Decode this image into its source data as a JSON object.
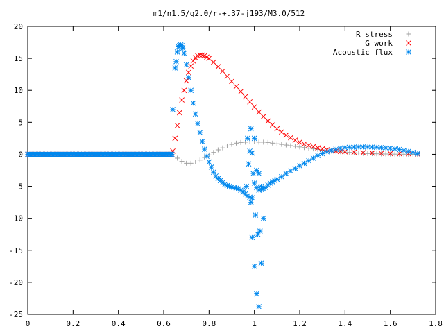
{
  "chart_data": {
    "type": "scatter",
    "title": "m1/n1.5/q2.0/r-+.37-j193/M3.0/512",
    "xlabel": "",
    "ylabel": "",
    "xlim": [
      0,
      1.8
    ],
    "ylim": [
      -25,
      20
    ],
    "x_ticks": [
      "0",
      "0.2",
      "0.4",
      "0.6",
      "0.8",
      "1",
      "1.2",
      "1.4",
      "1.6",
      "1.8"
    ],
    "y_ticks": [
      "20",
      "15",
      "10",
      "5",
      "0",
      "-5",
      "-10",
      "-15",
      "-20",
      "-25"
    ],
    "x_tick_values": [
      0,
      0.2,
      0.4,
      0.6,
      0.8,
      1.0,
      1.2,
      1.4,
      1.6,
      1.8
    ],
    "y_tick_values": [
      20,
      15,
      10,
      5,
      0,
      -5,
      -10,
      -15,
      -20,
      -25
    ],
    "grid": false,
    "legend_position": "top-right",
    "series": [
      {
        "name": "R stress",
        "marker": "plus",
        "color": "#a0a0a0",
        "x": [
          0.64,
          0.66,
          0.68,
          0.7,
          0.72,
          0.74,
          0.76,
          0.78,
          0.8,
          0.82,
          0.84,
          0.86,
          0.88,
          0.9,
          0.92,
          0.94,
          0.96,
          0.98,
          1.0,
          1.02,
          1.04,
          1.06,
          1.08,
          1.1,
          1.12,
          1.14,
          1.16,
          1.18,
          1.2,
          1.22,
          1.24,
          1.26,
          1.28,
          1.3,
          1.32,
          1.34,
          1.36,
          1.38,
          1.4,
          1.42,
          1.44,
          1.46,
          1.48,
          1.5,
          1.52,
          1.54,
          1.56,
          1.58,
          1.6,
          1.62,
          1.64,
          1.66,
          1.68,
          1.7,
          1.72
        ],
        "y": [
          0.2,
          -0.6,
          -1.1,
          -1.4,
          -1.4,
          -1.2,
          -0.9,
          -0.5,
          -0.1,
          0.3,
          0.7,
          1.0,
          1.3,
          1.55,
          1.75,
          1.85,
          1.9,
          1.95,
          1.95,
          1.9,
          1.9,
          1.85,
          1.75,
          1.65,
          1.55,
          1.45,
          1.35,
          1.25,
          1.15,
          1.05,
          0.95,
          0.85,
          0.75,
          0.65,
          0.55,
          0.5,
          0.45,
          0.4,
          0.35,
          0.3,
          0.25,
          0.2,
          0.15,
          0.12,
          0.1,
          0.08,
          0.06,
          0.05,
          0.04,
          0.03,
          0.02,
          0.02,
          0.01,
          0.0,
          0.0
        ]
      },
      {
        "name": "G work",
        "marker": "cross",
        "color": "#ff0000",
        "x": [
          0.64,
          0.65,
          0.66,
          0.67,
          0.68,
          0.69,
          0.7,
          0.71,
          0.72,
          0.73,
          0.74,
          0.75,
          0.76,
          0.77,
          0.78,
          0.79,
          0.8,
          0.82,
          0.84,
          0.86,
          0.88,
          0.9,
          0.92,
          0.94,
          0.96,
          0.98,
          1.0,
          1.02,
          1.04,
          1.06,
          1.08,
          1.1,
          1.12,
          1.14,
          1.16,
          1.18,
          1.2,
          1.22,
          1.24,
          1.26,
          1.28,
          1.3,
          1.32,
          1.34,
          1.36,
          1.38,
          1.4,
          1.44,
          1.48,
          1.52,
          1.56,
          1.6,
          1.64,
          1.68,
          1.72
        ],
        "y": [
          0.5,
          2.5,
          4.5,
          6.5,
          8.5,
          10.0,
          11.5,
          12.8,
          13.8,
          14.6,
          15.1,
          15.4,
          15.5,
          15.5,
          15.4,
          15.2,
          15.0,
          14.4,
          13.7,
          13.0,
          12.2,
          11.4,
          10.6,
          9.8,
          9.0,
          8.2,
          7.4,
          6.6,
          5.9,
          5.2,
          4.6,
          4.0,
          3.5,
          3.0,
          2.6,
          2.2,
          1.9,
          1.6,
          1.4,
          1.2,
          1.0,
          0.85,
          0.7,
          0.6,
          0.5,
          0.45,
          0.4,
          0.32,
          0.25,
          0.2,
          0.15,
          0.12,
          0.1,
          0.08,
          0.05
        ]
      },
      {
        "name": "Acoustic flux",
        "marker": "star",
        "color": "#0088ee",
        "x": [
          0.64,
          0.65,
          0.655,
          0.66,
          0.665,
          0.67,
          0.675,
          0.68,
          0.685,
          0.69,
          0.7,
          0.71,
          0.72,
          0.73,
          0.74,
          0.75,
          0.76,
          0.77,
          0.78,
          0.79,
          0.8,
          0.81,
          0.82,
          0.83,
          0.84,
          0.85,
          0.86,
          0.87,
          0.88,
          0.89,
          0.9,
          0.91,
          0.92,
          0.93,
          0.94,
          0.95,
          0.96,
          0.97,
          0.98,
          0.99,
          1.0,
          1.01,
          1.02,
          1.03,
          1.04,
          1.05,
          1.06,
          1.07,
          1.08,
          1.09,
          1.1,
          1.12,
          1.14,
          1.16,
          1.18,
          1.2,
          1.22,
          1.24,
          1.26,
          1.28,
          1.3,
          1.32,
          1.34,
          1.36,
          1.38,
          1.4,
          1.42,
          1.44,
          1.46,
          1.48,
          1.5,
          1.52,
          1.54,
          1.56,
          1.58,
          1.6,
          1.62,
          1.64,
          1.66,
          1.68,
          1.7,
          1.72,
          0.97,
          0.98,
          0.975,
          0.985,
          0.99,
          1.0,
          1.01,
          1.02,
          1.03,
          1.04,
          0.965,
          0.995,
          1.005,
          1.015,
          1.025,
          0.985,
          0.99,
          1.0,
          1.01,
          1.02,
          1.03
        ],
        "y": [
          7.0,
          13.5,
          14.5,
          16.0,
          16.8,
          17.0,
          17.1,
          17.0,
          16.6,
          15.8,
          14.0,
          12.0,
          10.0,
          8.0,
          6.3,
          4.8,
          3.4,
          2.0,
          0.8,
          -0.3,
          -1.2,
          -2.0,
          -2.8,
          -3.4,
          -3.8,
          -4.1,
          -4.4,
          -4.7,
          -4.9,
          -5.0,
          -5.1,
          -5.2,
          -5.3,
          -5.4,
          -5.6,
          -5.9,
          -6.2,
          -6.5,
          -6.7,
          -6.8,
          -4.5,
          -5.2,
          -5.6,
          -5.5,
          -5.4,
          -5.2,
          -4.8,
          -4.5,
          -4.3,
          -4.1,
          -3.9,
          -3.5,
          -3.0,
          -2.6,
          -2.2,
          -1.8,
          -1.4,
          -1.0,
          -0.6,
          -0.2,
          0.1,
          0.4,
          0.6,
          0.8,
          0.95,
          1.05,
          1.1,
          1.12,
          1.15,
          1.15,
          1.15,
          1.12,
          1.1,
          1.05,
          1.0,
          0.95,
          0.85,
          0.75,
          0.6,
          0.45,
          0.3,
          0.1,
          2.5,
          0.5,
          -1.5,
          -7.5,
          -13.0,
          -17.5,
          -21.8,
          -23.8,
          -17.0,
          -10.0,
          -5.0,
          -3.0,
          -9.5,
          -12.5,
          -12.0,
          4.0,
          0.2,
          2.5,
          -2.5,
          -3.0,
          -5.0
        ]
      }
    ]
  }
}
